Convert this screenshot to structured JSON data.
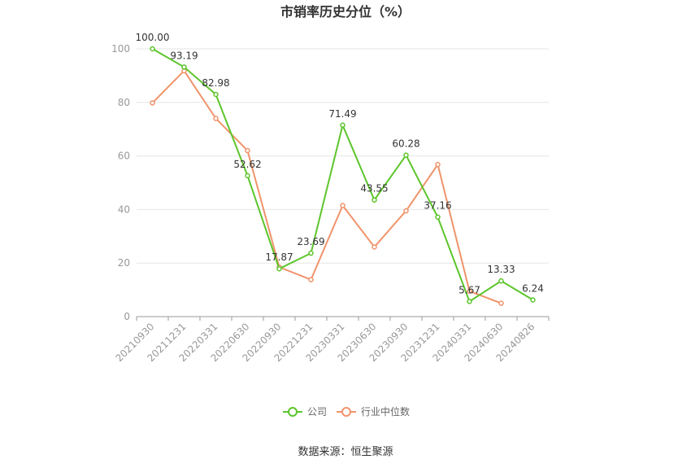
{
  "chart_data": {
    "type": "line",
    "title": "市销率历史分位（%）",
    "categories": [
      "20210930",
      "20211231",
      "20220331",
      "20220630",
      "20220930",
      "20221231",
      "20230331",
      "20230630",
      "20230930",
      "20231231",
      "20240331",
      "20240630",
      "20240826"
    ],
    "series": [
      {
        "name": "公司",
        "color": "#5cc52b",
        "values": [
          100.0,
          93.19,
          82.98,
          52.62,
          17.87,
          23.69,
          71.49,
          43.55,
          60.28,
          37.16,
          5.67,
          13.33,
          6.24
        ],
        "labels": [
          "100.00",
          "93.19",
          "82.98",
          "52.62",
          "17.87",
          "23.69",
          "71.49",
          "43.55",
          "60.28",
          "37.16",
          "5.67",
          "13.33",
          "6.24"
        ]
      },
      {
        "name": "行业中位数",
        "color": "#f0936b",
        "values": [
          79.8,
          91.8,
          74.0,
          62.0,
          18.5,
          13.8,
          41.5,
          26.0,
          39.5,
          56.8,
          9.5,
          5.0,
          null
        ]
      }
    ],
    "yticks": [
      0,
      20,
      40,
      60,
      80,
      100
    ],
    "ylim": [
      0,
      100
    ],
    "legend_position": "bottom",
    "grid": true
  },
  "source_text": "数据来源：恒生聚源"
}
